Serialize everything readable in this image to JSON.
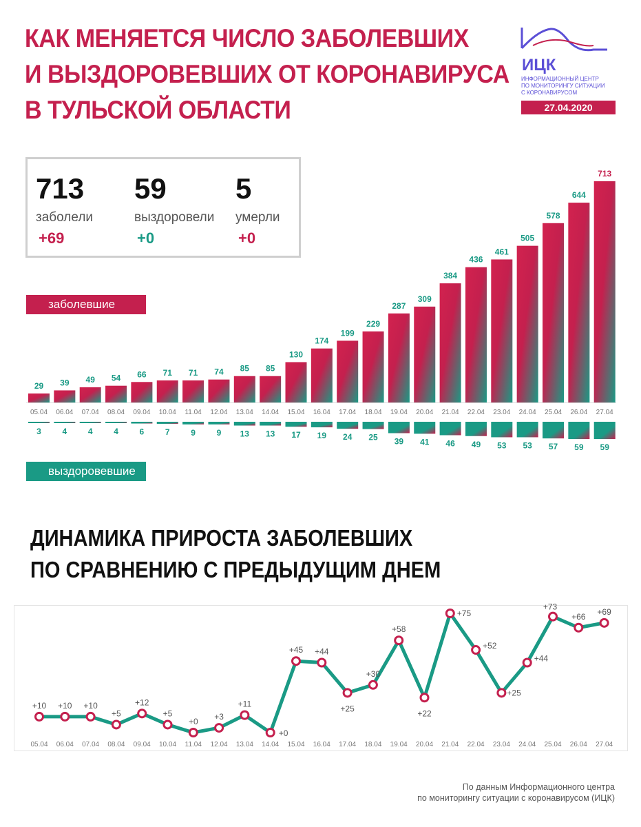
{
  "header": {
    "title_lines": [
      "Как меняется число заболевших",
      "и выздоровевших от коронавируса",
      "в Тульской области"
    ],
    "logo_abbr": "ИЦК",
    "logo_desc_lines": [
      "Информационный центр",
      "по мониторингу ситуации",
      "с коронавирусом"
    ],
    "date": "27.04.2020"
  },
  "stats": {
    "infected": {
      "value": "713",
      "label": "заболели",
      "delta": "+69"
    },
    "recovered": {
      "value": "59",
      "label": "выздоровели",
      "delta": "+0"
    },
    "died": {
      "value": "5",
      "label": "умерли",
      "delta": "+0"
    }
  },
  "labels": {
    "infected_series": "заболевшие",
    "recovered_series": "выздоровевшие"
  },
  "section2": {
    "title_lines": [
      "Динамика прироста заболевших",
      "по сравнению с предыдущим днем"
    ]
  },
  "source": {
    "lines": [
      "По данным Информационного центра",
      "по мониторингу ситуации с коронавирусом (ИЦК)"
    ]
  },
  "colors": {
    "accent_red": "#c4204e",
    "accent_green": "#1a9a85",
    "logo_blue": "#5b4fd6"
  },
  "chart_data": [
    {
      "type": "bar",
      "categories": [
        "05.04",
        "06.04",
        "07.04",
        "08.04",
        "09.04",
        "10.04",
        "11.04",
        "12.04",
        "13.04",
        "14.04",
        "15.04",
        "16.04",
        "17.04",
        "18.04",
        "19.04",
        "20.04",
        "21.04",
        "22.04",
        "23.04",
        "24.04",
        "25.04",
        "26.04",
        "27.04"
      ],
      "series": [
        {
          "name": "заболевшие",
          "values": [
            29,
            39,
            49,
            54,
            66,
            71,
            71,
            74,
            85,
            85,
            130,
            174,
            199,
            229,
            287,
            309,
            384,
            436,
            461,
            505,
            578,
            644,
            713
          ]
        },
        {
          "name": "выздоровевшие",
          "values": [
            3,
            4,
            4,
            4,
            6,
            7,
            9,
            9,
            13,
            13,
            17,
            19,
            24,
            25,
            39,
            41,
            46,
            49,
            53,
            53,
            57,
            59,
            59
          ]
        }
      ]
    },
    {
      "type": "line",
      "x": [
        "05.04",
        "06.04",
        "07.04",
        "08.04",
        "09.04",
        "10.04",
        "11.04",
        "12.04",
        "13.04",
        "14.04",
        "15.04",
        "16.04",
        "17.04",
        "18.04",
        "19.04",
        "20.04",
        "21.04",
        "22.04",
        "23.04",
        "24.04",
        "25.04",
        "26.04",
        "27.04"
      ],
      "values": [
        10,
        10,
        10,
        5,
        12,
        5,
        0,
        3,
        11,
        0,
        45,
        44,
        25,
        30,
        58,
        22,
        75,
        52,
        25,
        44,
        73,
        66,
        69
      ],
      "labels": [
        "+10",
        "+10",
        "+10",
        "+5",
        "+12",
        "+5",
        "+0",
        "+3",
        "+11",
        "+0",
        "+45",
        "+44",
        "+25",
        "+30",
        "+58",
        "+22",
        "+75",
        "+52",
        "+25",
        "+44",
        "+73",
        "+66",
        "+69"
      ],
      "label_below": [
        false,
        false,
        false,
        false,
        false,
        false,
        false,
        false,
        false,
        false,
        false,
        false,
        true,
        false,
        false,
        true,
        false,
        false,
        true,
        false,
        false,
        false,
        false
      ]
    }
  ]
}
